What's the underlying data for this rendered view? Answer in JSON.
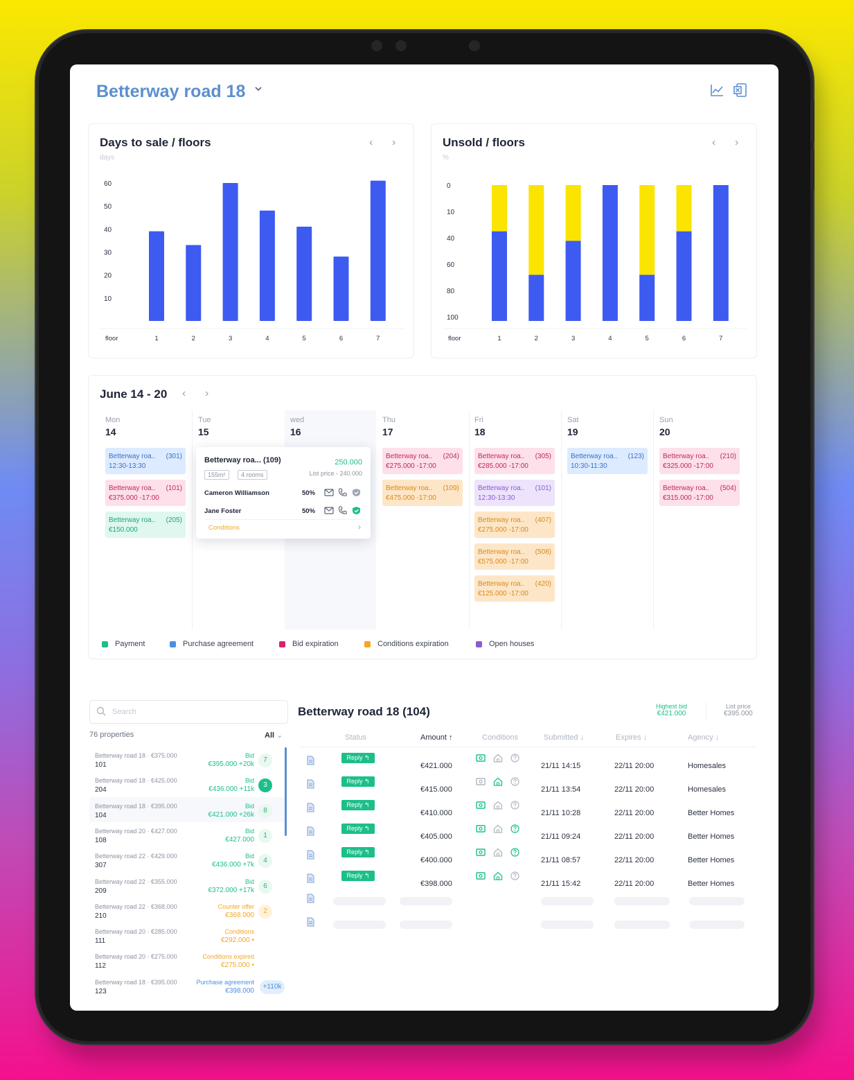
{
  "header": {
    "title": "Betterway road 18"
  },
  "days_chart": {
    "title": "Days to sale / floors",
    "unit": "days",
    "xlabel": "floor"
  },
  "unsold_chart": {
    "title": "Unsold / floors",
    "unit": "%",
    "xlabel": "floor"
  },
  "chart_data": [
    {
      "type": "bar",
      "title": "Days to sale / floors",
      "ylabel": "days",
      "xlabel": "floor",
      "categories": [
        "1",
        "2",
        "3",
        "4",
        "5",
        "6",
        "7"
      ],
      "values": [
        39,
        33,
        60,
        48,
        41,
        28,
        61
      ],
      "yticks": [
        10,
        20,
        30,
        40,
        50,
        60
      ],
      "ylim": [
        0,
        60
      ],
      "colors": [
        "#3d5af1"
      ]
    },
    {
      "type": "bar",
      "stacked": true,
      "title": "Unsold / floors",
      "ylabel": "%",
      "xlabel": "floor",
      "categories": [
        "1",
        "2",
        "3",
        "4",
        "5",
        "6",
        "7"
      ],
      "yticks": [
        "0",
        "10",
        "40",
        "60",
        "80",
        "100"
      ],
      "series": [
        {
          "values": [
            66,
            34,
            59,
            100,
            34,
            66,
            100
          ],
          "color": "#3d5af1"
        },
        {
          "values": [
            34,
            66,
            41,
            0,
            66,
            34,
            0
          ],
          "color": "#fbe400"
        }
      ],
      "ylim": [
        0,
        100
      ]
    }
  ],
  "week": {
    "title": "June 14 - 20",
    "days": [
      {
        "name": "Mon",
        "date": "14"
      },
      {
        "name": "Tue",
        "date": "15"
      },
      {
        "name": "wed",
        "date": "16"
      },
      {
        "name": "Thu",
        "date": "17"
      },
      {
        "name": "Fri",
        "date": "18"
      },
      {
        "name": "Sat",
        "date": "19"
      },
      {
        "name": "Sun",
        "date": "20"
      }
    ],
    "events": [
      {
        "name": "Betterway roa..",
        "unit": "(301)",
        "detail": "12:30-13:30",
        "color": "blue"
      },
      {
        "name": "Betterway roa..",
        "unit": "(101)",
        "detail": "€375.000 -17:00",
        "color": "pink"
      },
      {
        "name": "Betterway roa..",
        "unit": "(205)",
        "detail": "€150.000",
        "color": "green"
      },
      {
        "name": "Betterway roa..",
        "unit": "(204)",
        "detail": "€275.000 -17:00",
        "color": "pink"
      },
      {
        "name": "Betterway roa..",
        "unit": "(109)",
        "detail": "€475.000 -17:00",
        "color": "orange"
      },
      {
        "name": "Betterway roa..",
        "unit": "(305)",
        "detail": "€285.000 -17:00",
        "color": "pink"
      },
      {
        "name": "Betterway roa..",
        "unit": "(101)",
        "detail": "12:30-13:30",
        "color": "purple"
      },
      {
        "name": "Betterway roa..",
        "unit": "(407)",
        "detail": "€275.000 -17:00",
        "color": "orange"
      },
      {
        "name": "Betterway roa..",
        "unit": "(508)",
        "detail": "€575.000 -17:00",
        "color": "orange"
      },
      {
        "name": "Betterway roa..",
        "unit": "(420)",
        "detail": "€125.000 -17:00",
        "color": "orange"
      },
      {
        "name": "Betterway roa..",
        "unit": "(123)",
        "detail": "10:30-11:30",
        "color": "blue"
      },
      {
        "name": "Betterway roa..",
        "unit": "(210)",
        "detail": "€325.000 -17:00",
        "color": "pink"
      },
      {
        "name": "Betterway roa..",
        "unit": "(504)",
        "detail": "€315.000 -17:00",
        "color": "pink"
      }
    ],
    "popup": {
      "name": "Betterway roa... (109)",
      "price": "250.000",
      "size": "155m²",
      "rooms": "4 rooms",
      "list_price": "List price - 240.000",
      "buyers": [
        {
          "name": "Cameron Williamson",
          "share": "50%"
        },
        {
          "name": "Jane Foster",
          "share": "50%"
        }
      ],
      "conditions": "Conditions"
    },
    "legend": [
      {
        "label": "Payment",
        "color": "#1cbf8a"
      },
      {
        "label": "Purchase agreement",
        "color": "#4a90e2"
      },
      {
        "label": "Bid expiration",
        "color": "#d6246b"
      },
      {
        "label": "Conditions expiration",
        "color": "#f5a623"
      },
      {
        "label": "Open houses",
        "color": "#8a5ad3"
      }
    ]
  },
  "properties": {
    "search_placeholder": "Search",
    "count": "76 properties",
    "filter": "All",
    "items": [
      {
        "name": "Betterway road 18 · €375.000",
        "num": "101",
        "label": "Bid",
        "value": "€395.000 +20k",
        "badge": "7"
      },
      {
        "name": "Betterway road 18 · €425.000",
        "num": "204",
        "label": "Bid",
        "value": "€436.000 +11k",
        "badge": "3"
      },
      {
        "name": "Betterway road 18 · €395.000",
        "num": "104",
        "label": "Bid",
        "value": "€421.000 +26k",
        "badge": "8"
      },
      {
        "name": "Betterway road 20 · €427.000",
        "num": "108",
        "label": "Bid",
        "value": "€427.000",
        "badge": "1"
      },
      {
        "name": "Betterway road 22 · €429.000",
        "num": "307",
        "label": "Bid",
        "value": "€436.000 +7k",
        "badge": "4"
      },
      {
        "name": "Betterway road 22 · €355.000",
        "num": "209",
        "label": "Bid",
        "value": "€372.000 +17k",
        "badge": "6"
      },
      {
        "name": "Betterway road 22 · €368.000",
        "num": "210",
        "label": "Counter offer",
        "value": "€368.000",
        "badge": "2"
      },
      {
        "name": "Betterway road 20 · €285.000",
        "num": "111",
        "label": "Conditions",
        "value": "€292.000 •",
        "badge": ""
      },
      {
        "name": "Betterway road 20 · €275.000",
        "num": "112",
        "label": "Conditions expired",
        "value": "€275.000 •",
        "badge": ""
      },
      {
        "name": "Betterway road 18 · €395.000",
        "num": "123",
        "label": "Purchase agreement",
        "value": "€398.000",
        "badge": "+110k"
      }
    ]
  },
  "detail": {
    "title": "Betterway road 18 (104)",
    "highest_bid_label": "Highest bid",
    "highest_bid": "€421.000",
    "list_price_label": "List price",
    "list_price": "€395.000",
    "columns": [
      "Status",
      "Amount ↑",
      "Conditions",
      "Submitted ↓",
      "Expires ↓",
      "Agency ↓"
    ],
    "reply_label": "Reply ↰",
    "rows": [
      {
        "amount": "€421.000",
        "submitted": "21/11 14:15",
        "expires": "22/11 20:00",
        "agency": "Homesales"
      },
      {
        "amount": "€415.000",
        "submitted": "21/11 13:54",
        "expires": "22/11 20:00",
        "agency": "Homesales"
      },
      {
        "amount": "€410.000",
        "submitted": "21/11 10:28",
        "expires": "22/11 20:00",
        "agency": "Better Homes"
      },
      {
        "amount": "€405.000",
        "submitted": "21/11 09:24",
        "expires": "22/11 20:00",
        "agency": "Better Homes"
      },
      {
        "amount": "€400.000",
        "submitted": "21/11 08:57",
        "expires": "22/11 20:00",
        "agency": "Better Homes"
      },
      {
        "amount": "€398.000",
        "submitted": "21/11 15:42",
        "expires": "22/11 20:00",
        "agency": "Better Homes"
      }
    ]
  }
}
